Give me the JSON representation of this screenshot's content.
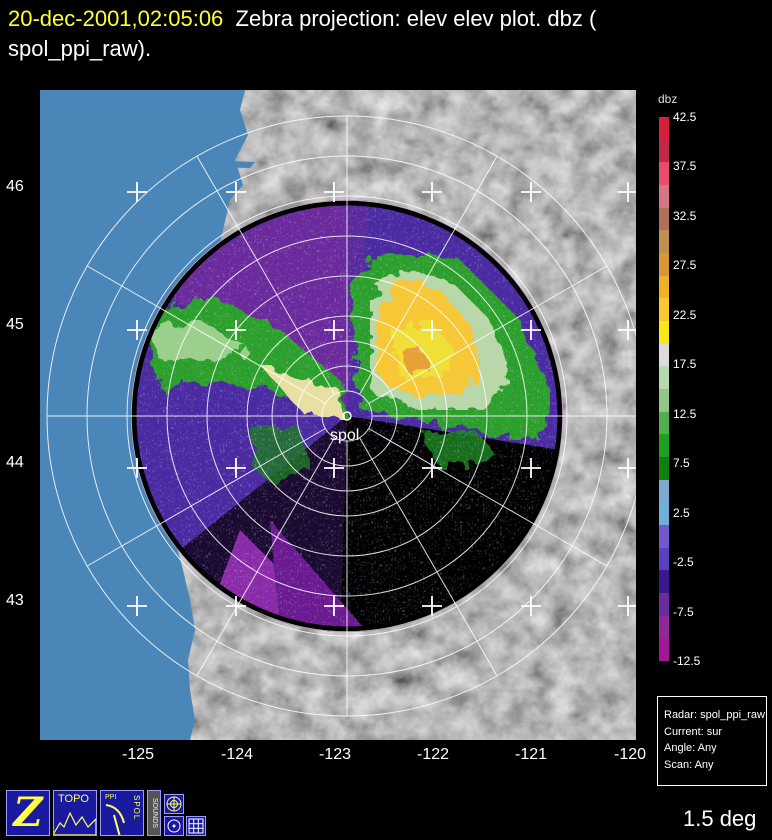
{
  "header": {
    "timestamp": "20-dec-2001,02:05:06",
    "line1_rest": "Zebra projection: elev elev  plot.  dbz (",
    "line2": "spol_ppi_raw)."
  },
  "axes": {
    "lat_labels": [
      "46",
      "45",
      "44",
      "43"
    ],
    "lon_labels": [
      "-125",
      "-124",
      "-123",
      "-122",
      "-121",
      "-120"
    ]
  },
  "radar_label": "spol",
  "colorbar": {
    "title": "dbz",
    "labels": [
      "42.5",
      "37.5",
      "32.5",
      "27.5",
      "22.5",
      "17.5",
      "12.5",
      "7.5",
      "2.5",
      "-2.5",
      "-7.5",
      "-12.5"
    ],
    "colors": [
      "#d8203c",
      "#c02848",
      "#e84c6c",
      "#d87488",
      "#b07058",
      "#c09050",
      "#d89838",
      "#f0b028",
      "#f8c830",
      "#f8e818",
      "#dcdcdc",
      "#b8d8b0",
      "#90c888",
      "#50b050",
      "#20a020",
      "#108010",
      "#80a8d0",
      "#70b0d8",
      "#7058d0",
      "#5840c0",
      "#3a1890",
      "#6a2aa0",
      "#902898",
      "#a01898"
    ]
  },
  "info": {
    "radar": "Radar: spol_ppi_raw",
    "current": "Current: sur",
    "angle": "Angle: Any",
    "scan": "Scan: Any"
  },
  "angle_readout": "1.5 deg",
  "toolbar": {
    "z_label": "Z",
    "topo_label": "TOPO",
    "ppi_label": "PPI",
    "spol_label": "SPOL",
    "sounds_label": "SOUNDS"
  },
  "colors": {
    "header_time": "#ffff33",
    "ocean": "#4a86b8",
    "land_base": "#777777",
    "radar_bg": "#5030a8",
    "grid": "#ffffff"
  }
}
